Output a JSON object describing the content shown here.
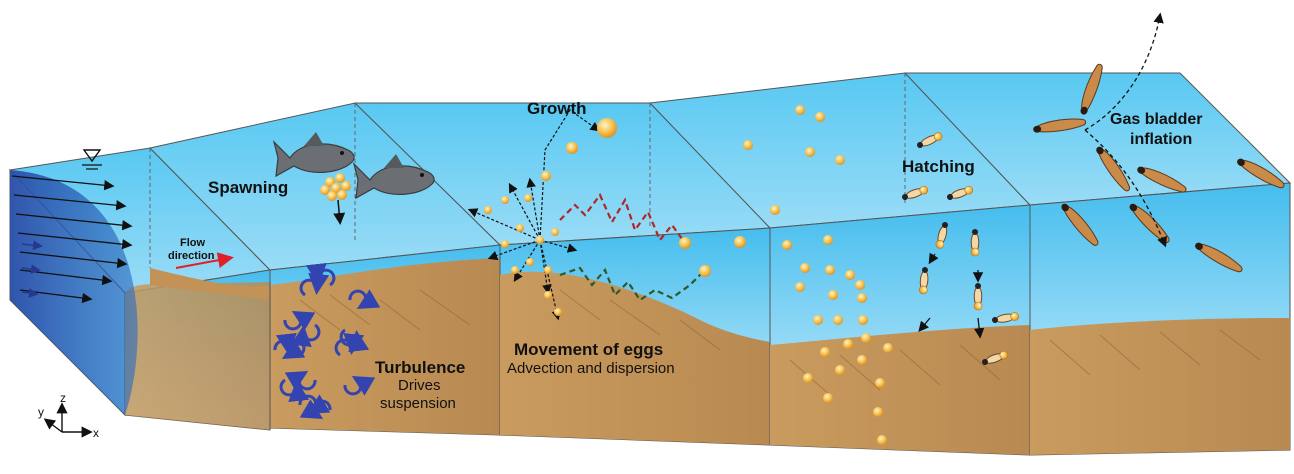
{
  "labels": {
    "spawning": "Spawning",
    "growth": "Growth",
    "hatching": "Hatching",
    "gas_bladder_1": "Gas bladder",
    "gas_bladder_2": "inflation",
    "flow_1": "Flow",
    "flow_2": "direction",
    "turbulence_title": "Turbulence",
    "turbulence_sub_1": "Drives",
    "turbulence_sub_2": "suspension",
    "movement_title": "Movement of eggs",
    "movement_sub": "Advection and dispersion",
    "axis_y": "y",
    "axis_z": "z",
    "axis_x": "x"
  },
  "colors": {
    "water_top": "#4fc3ee",
    "water_bottom": "#cdeefb",
    "sediment": "#c99c63",
    "sediment_dark": "#a47a45",
    "egg": "#f2b54a",
    "eddy": "#3344b0",
    "path_red": "#b32428",
    "path_green": "#2e5a2a",
    "flow_arrow": "#e0202a"
  },
  "icons": {
    "water_surface": "water-surface-triangle-icon",
    "fish": "fish-icon",
    "larva": "larva-icon",
    "axes": "xyz-axes-icon"
  }
}
